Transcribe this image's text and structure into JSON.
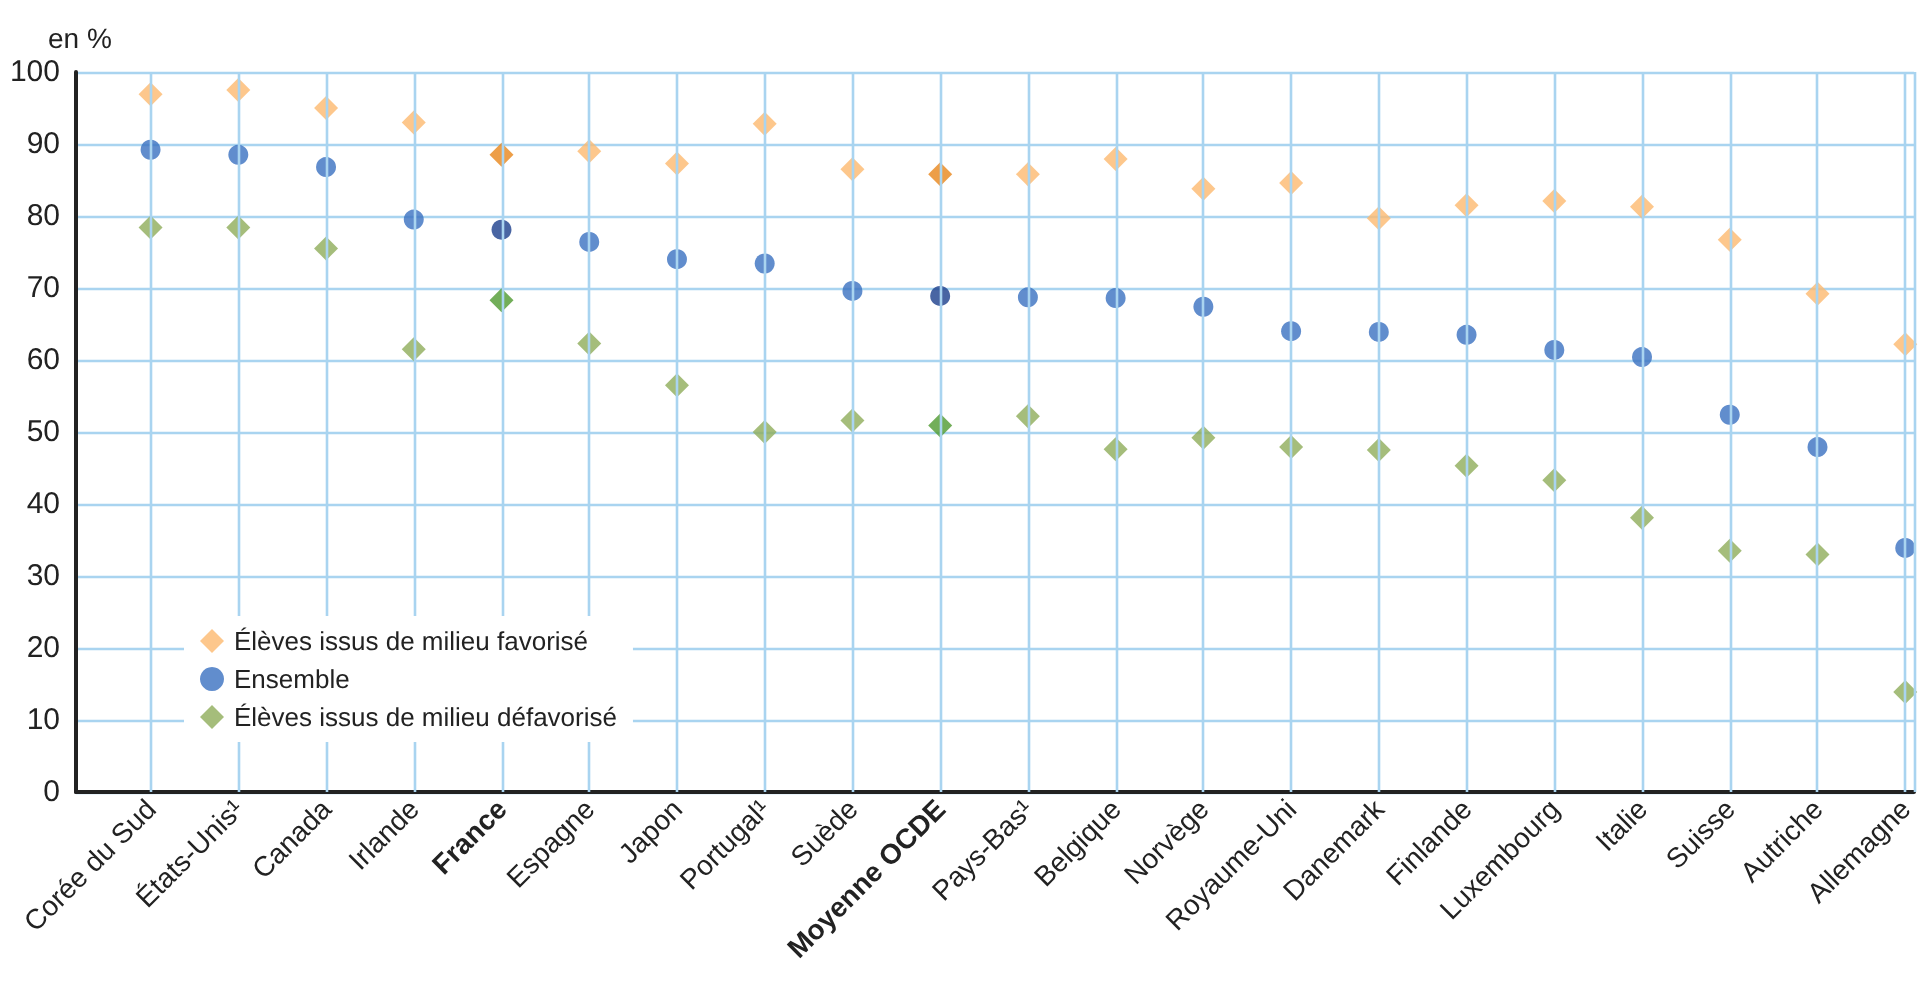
{
  "chart_data": {
    "type": "scatter",
    "ylabel": "en %",
    "categories": [
      "Corée du Sud",
      "États-Unis¹",
      "Canada",
      "Irlande",
      "France",
      "Espagne",
      "Japon",
      "Portugal¹",
      "Suède",
      "Moyenne OCDE",
      "Pays-Bas¹",
      "Belgique",
      "Norvège",
      "Royaume-Uni",
      "Danemark",
      "Finlande",
      "Luxembourg",
      "Italie",
      "Suisse",
      "Autriche",
      "Allemagne"
    ],
    "series": [
      {
        "name": "Élèves issus de milieu favorisé",
        "color": "#fdb96f",
        "marker": "diamond",
        "colors": [
          "#fdb96f",
          "#fdb96f",
          "#fdb96f",
          "#fdb96f",
          "#e8861a",
          "#fdb96f",
          "#fdb96f",
          "#fdb96f",
          "#fdb96f",
          "#e8861a",
          "#fdb96f",
          "#fdb96f",
          "#fdb96f",
          "#fdb96f",
          "#fdb96f",
          "#fdb96f",
          "#fdb96f",
          "#fdb96f",
          "#fdb96f",
          "#fdb96f",
          "#fdb96f"
        ],
        "values": [
          96.9,
          97.5,
          95,
          93,
          88.5,
          89,
          87.3,
          92.8,
          86.5,
          85.8,
          85.8,
          87.9,
          83.8,
          84.6,
          79.7,
          81.5,
          82.1,
          81.3,
          76.7,
          69.2,
          62.2
        ]
      },
      {
        "name": "Ensemble",
        "color": "#3a70c0",
        "marker": "circle",
        "colors": [
          "#3a70c0",
          "#3a70c0",
          "#3a70c0",
          "#3a70c0",
          "#1c3e8c",
          "#3a70c0",
          "#3a70c0",
          "#3a70c0",
          "#3a70c0",
          "#1c3e8c",
          "#3a70c0",
          "#3a70c0",
          "#3a70c0",
          "#3a70c0",
          "#3a70c0",
          "#3a70c0",
          "#3a70c0",
          "#3a70c0",
          "#3a70c0",
          "#3a70c0",
          "#3a70c0"
        ],
        "values": [
          89.2,
          88.5,
          86.8,
          79.5,
          78.1,
          76.4,
          74,
          73.4,
          69.6,
          68.9,
          68.7,
          68.6,
          67.4,
          64,
          63.9,
          63.5,
          61.4,
          60.4,
          52.4,
          47.9,
          33.9
        ]
      },
      {
        "name": "Élèves issus de milieu défavorisé",
        "color": "#8fad5a",
        "marker": "diamond",
        "colors": [
          "#8fad5a",
          "#8fad5a",
          "#8fad5a",
          "#8fad5a",
          "#4f9a2f",
          "#8fad5a",
          "#8fad5a",
          "#8fad5a",
          "#8fad5a",
          "#4f9a2f",
          "#8fad5a",
          "#8fad5a",
          "#8fad5a",
          "#8fad5a",
          "#8fad5a",
          "#8fad5a",
          "#8fad5a",
          "#8fad5a",
          "#8fad5a",
          "#8fad5a",
          "#8fad5a"
        ],
        "values": [
          78.4,
          78.4,
          75.5,
          61.5,
          68.3,
          62.3,
          56.5,
          50,
          51.6,
          50.9,
          52.2,
          47.6,
          49.2,
          47.9,
          47.5,
          45.3,
          43.3,
          38.1,
          33.5,
          33,
          13.9
        ]
      }
    ],
    "ylim": [
      0,
      100
    ],
    "yticks": [
      0,
      10,
      20,
      30,
      40,
      50,
      60,
      70,
      80,
      90,
      100
    ],
    "grid": true,
    "legend": "bottom left"
  }
}
